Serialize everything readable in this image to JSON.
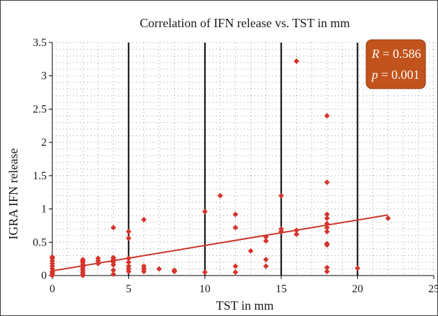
{
  "chart_data": {
    "type": "scatter",
    "title": "Correlation of IFN release vs. TST in mm",
    "xlabel": "TST in mm",
    "ylabel": "IGRA IFN release",
    "xlim": [
      0,
      25
    ],
    "ylim": [
      0,
      3.5
    ],
    "x_ticks": [
      "0",
      "5",
      "10",
      "15",
      "20",
      "25"
    ],
    "y_ticks": [
      "0",
      "0.5",
      "1",
      "1.5",
      "2",
      "2.5",
      "3",
      "3.5"
    ],
    "grid": "dotted",
    "points": [
      [
        0,
        0.0
      ],
      [
        0,
        0.02
      ],
      [
        0,
        0.04
      ],
      [
        0,
        0.06
      ],
      [
        0,
        0.1
      ],
      [
        0,
        0.14
      ],
      [
        0,
        0.18
      ],
      [
        0,
        0.22
      ],
      [
        0,
        0.26
      ],
      [
        0,
        0.28
      ],
      [
        2,
        0.0
      ],
      [
        2,
        0.02
      ],
      [
        2,
        0.05
      ],
      [
        2,
        0.08
      ],
      [
        2,
        0.11
      ],
      [
        2,
        0.14
      ],
      [
        2,
        0.17
      ],
      [
        2,
        0.2
      ],
      [
        2,
        0.22
      ],
      [
        2,
        0.24
      ],
      [
        3,
        0.18
      ],
      [
        3,
        0.22
      ],
      [
        3,
        0.26
      ],
      [
        4,
        0.02
      ],
      [
        4,
        0.08
      ],
      [
        4,
        0.16
      ],
      [
        4,
        0.2
      ],
      [
        4,
        0.24
      ],
      [
        4,
        0.27
      ],
      [
        4,
        0.72
      ],
      [
        5,
        0.06
      ],
      [
        5,
        0.1
      ],
      [
        5,
        0.14
      ],
      [
        5,
        0.2
      ],
      [
        5,
        0.26
      ],
      [
        5,
        0.56
      ],
      [
        5,
        0.66
      ],
      [
        6,
        0.06
      ],
      [
        6,
        0.1
      ],
      [
        6,
        0.14
      ],
      [
        6,
        0.84
      ],
      [
        7,
        0.1
      ],
      [
        8,
        0.06
      ],
      [
        8,
        0.08
      ],
      [
        10,
        0.05
      ],
      [
        10,
        0.96
      ],
      [
        11,
        1.2
      ],
      [
        12,
        0.05
      ],
      [
        12,
        0.14
      ],
      [
        12,
        0.72
      ],
      [
        12,
        0.92
      ],
      [
        13,
        0.37
      ],
      [
        14,
        0.14
      ],
      [
        14,
        0.24
      ],
      [
        14,
        0.52
      ],
      [
        14,
        0.58
      ],
      [
        15,
        0.66
      ],
      [
        15,
        0.7
      ],
      [
        15,
        1.2
      ],
      [
        16,
        0.62
      ],
      [
        16,
        0.68
      ],
      [
        16,
        3.22
      ],
      [
        18,
        0.06
      ],
      [
        18,
        0.12
      ],
      [
        18,
        0.46
      ],
      [
        18,
        0.48
      ],
      [
        18,
        0.66
      ],
      [
        18,
        0.72
      ],
      [
        18,
        0.78
      ],
      [
        18,
        0.86
      ],
      [
        18,
        0.92
      ],
      [
        18,
        1.4
      ],
      [
        18,
        2.4
      ],
      [
        20,
        0.11
      ],
      [
        22,
        0.86
      ]
    ],
    "regression_line": {
      "x": [
        0,
        22
      ],
      "y": [
        0.07,
        0.91
      ]
    },
    "stats": {
      "r_label": "R",
      "r_value": "0.586",
      "p_label": "p",
      "p_value": "0.001"
    },
    "colors": {
      "marker": "#d6332a",
      "line": "#c8352a",
      "stats_box": "#c2531c",
      "vertical_lines": "#000000",
      "grid": "#9a9a9a"
    }
  }
}
